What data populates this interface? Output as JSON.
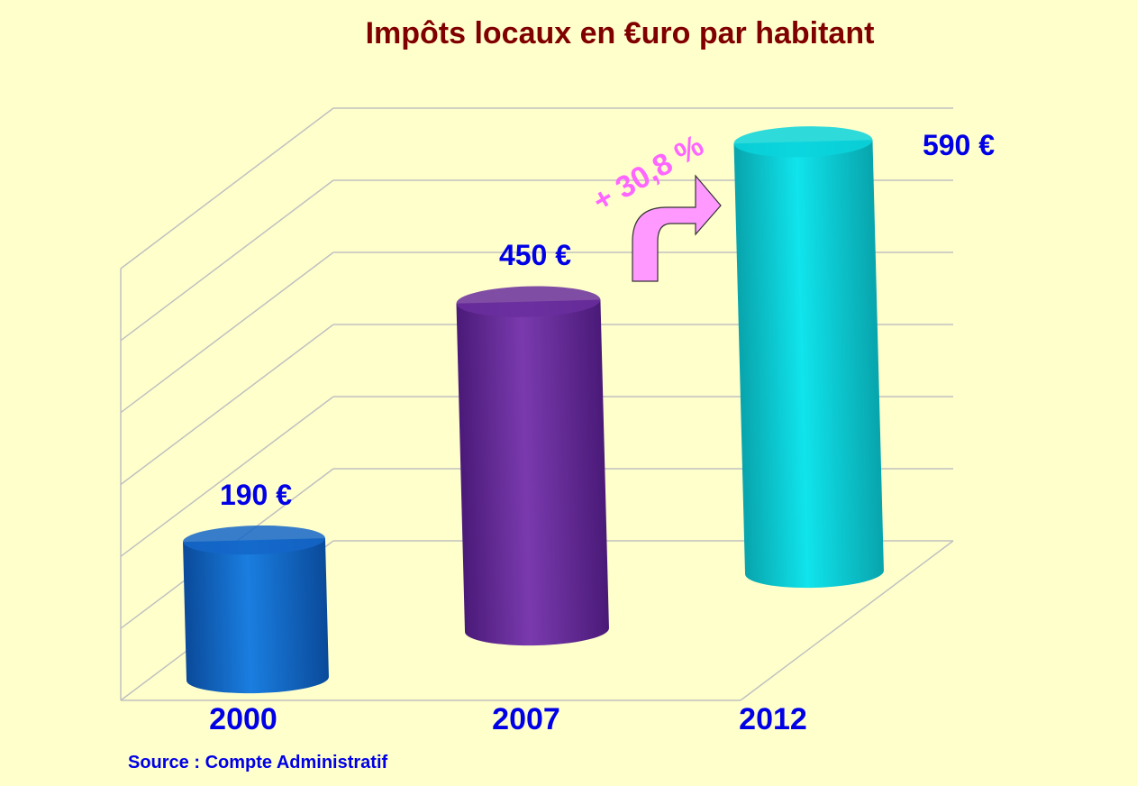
{
  "chart_data": {
    "type": "bar",
    "style": "3d-cylinder",
    "title": "Impôts locaux en €uro par habitant",
    "categories": [
      "2000",
      "2007",
      "2012"
    ],
    "values": [
      190,
      450,
      590
    ],
    "value_labels": [
      "190 €",
      "450 €",
      "590 €"
    ],
    "colors": [
      "#1466c8",
      "#6a2e9e",
      "#0ad4dc"
    ],
    "ylim": [
      0,
      700
    ],
    "grid": true,
    "annotation": "+ 30,8 %",
    "annotation_color": "#ff99ff",
    "source": "Source : Compte Administratif",
    "background": "#ffffcc",
    "title_color": "#800000",
    "label_color": "#0000e6"
  }
}
